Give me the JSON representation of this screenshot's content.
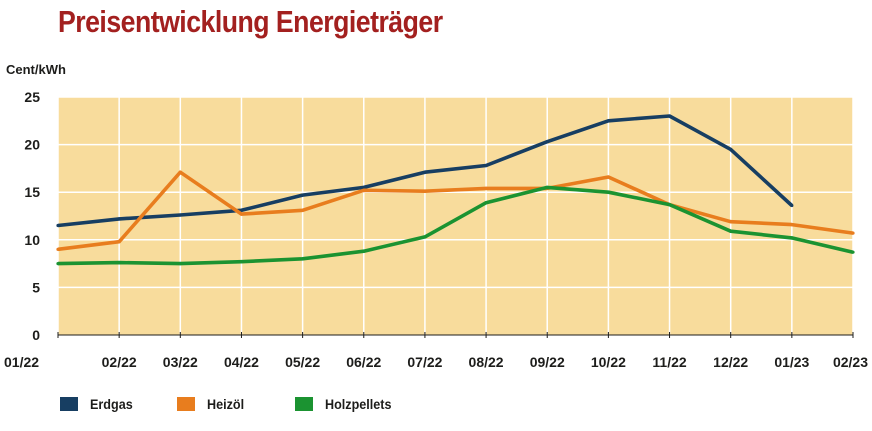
{
  "chart_data": {
    "type": "line",
    "title": "Preisentwicklung Energieträger",
    "ylabel": "Cent/kWh",
    "xlabel": "",
    "categories": [
      "01/22",
      "02/22",
      "03/22",
      "04/22",
      "05/22",
      "06/22",
      "07/22",
      "08/22",
      "09/22",
      "10/22",
      "11/22",
      "12/22",
      "01/23",
      "02/23"
    ],
    "yticks": [
      0,
      5,
      10,
      15,
      20,
      25
    ],
    "ylim": [
      0,
      25
    ],
    "grid": true,
    "legend": "bottom-left",
    "plot_background": "#f8dc9c",
    "grid_color": "#ffffff",
    "series": [
      {
        "name": "Erdgas",
        "color": "#173e62",
        "values": [
          11.5,
          12.2,
          12.6,
          13.1,
          14.7,
          15.5,
          17.1,
          17.8,
          20.3,
          22.5,
          23.0,
          19.5,
          13.6,
          null
        ]
      },
      {
        "name": "Heizöl",
        "color": "#e87d1e",
        "values": [
          9.0,
          9.8,
          17.1,
          12.7,
          13.1,
          15.2,
          15.1,
          15.4,
          15.4,
          16.6,
          13.7,
          11.9,
          11.6,
          10.7
        ]
      },
      {
        "name": "Holzpellets",
        "color": "#1b9331",
        "values": [
          7.5,
          7.6,
          7.5,
          7.7,
          8.0,
          8.8,
          10.3,
          13.9,
          15.5,
          15.0,
          13.7,
          10.9,
          10.2,
          8.7
        ]
      }
    ]
  }
}
